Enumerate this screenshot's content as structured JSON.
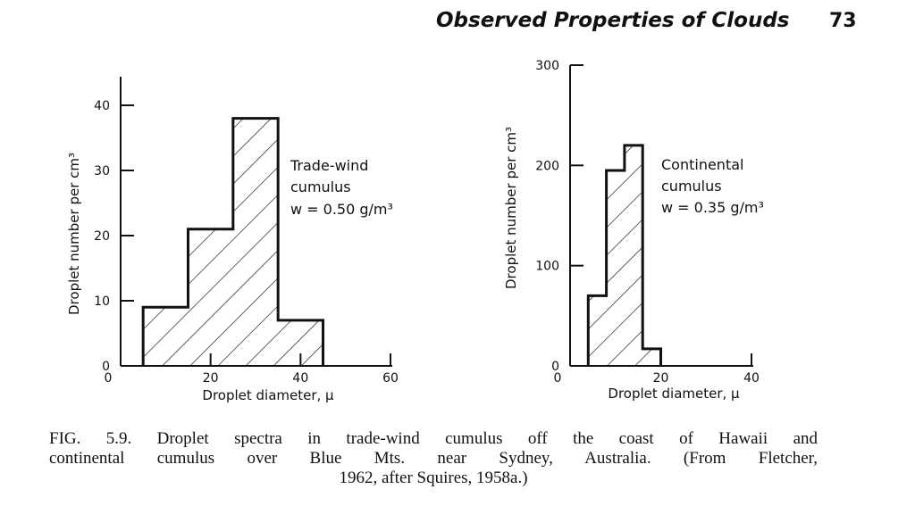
{
  "header": {
    "running_title": "Observed Properties of Clouds",
    "page_number": "73"
  },
  "caption": {
    "line1": "FIG. 5.9. Droplet spectra in trade-wind cumulus off the coast of Hawaii and",
    "line2": "continental cumulus over Blue Mts. near Sydney, Australia. (From Fletcher,",
    "line3": "1962, after Squires, 1958a.)"
  },
  "chart_data": [
    {
      "type": "bar",
      "histogram": true,
      "bin_edges": [
        5,
        15,
        25,
        35,
        45
      ],
      "values": [
        9,
        21,
        38,
        7
      ],
      "xlabel": "Droplet diameter, μ",
      "ylabel": "Droplet number per cm³",
      "xlim": [
        0,
        60
      ],
      "ylim": [
        0,
        40
      ],
      "xticks": [
        0,
        20,
        40,
        60
      ],
      "yticks": [
        0,
        10,
        20,
        30,
        40
      ],
      "annotation": [
        "Trade-wind",
        "cumulus",
        "w = 0.50 g/m³"
      ],
      "fill": "hatched",
      "grid": false
    },
    {
      "type": "bar",
      "histogram": true,
      "bin_edges": [
        4,
        8,
        12,
        16,
        20
      ],
      "values": [
        70,
        195,
        220,
        17
      ],
      "xlabel": "Droplet diameter, μ",
      "ylabel": "Droplet number per cm³",
      "xlim": [
        0,
        40
      ],
      "ylim": [
        0,
        300
      ],
      "xticks": [
        0,
        20,
        40
      ],
      "yticks": [
        0,
        100,
        200,
        300
      ],
      "annotation": [
        "Continental",
        "cumulus",
        "w = 0.35 g/m³"
      ],
      "fill": "hatched",
      "grid": false
    }
  ]
}
